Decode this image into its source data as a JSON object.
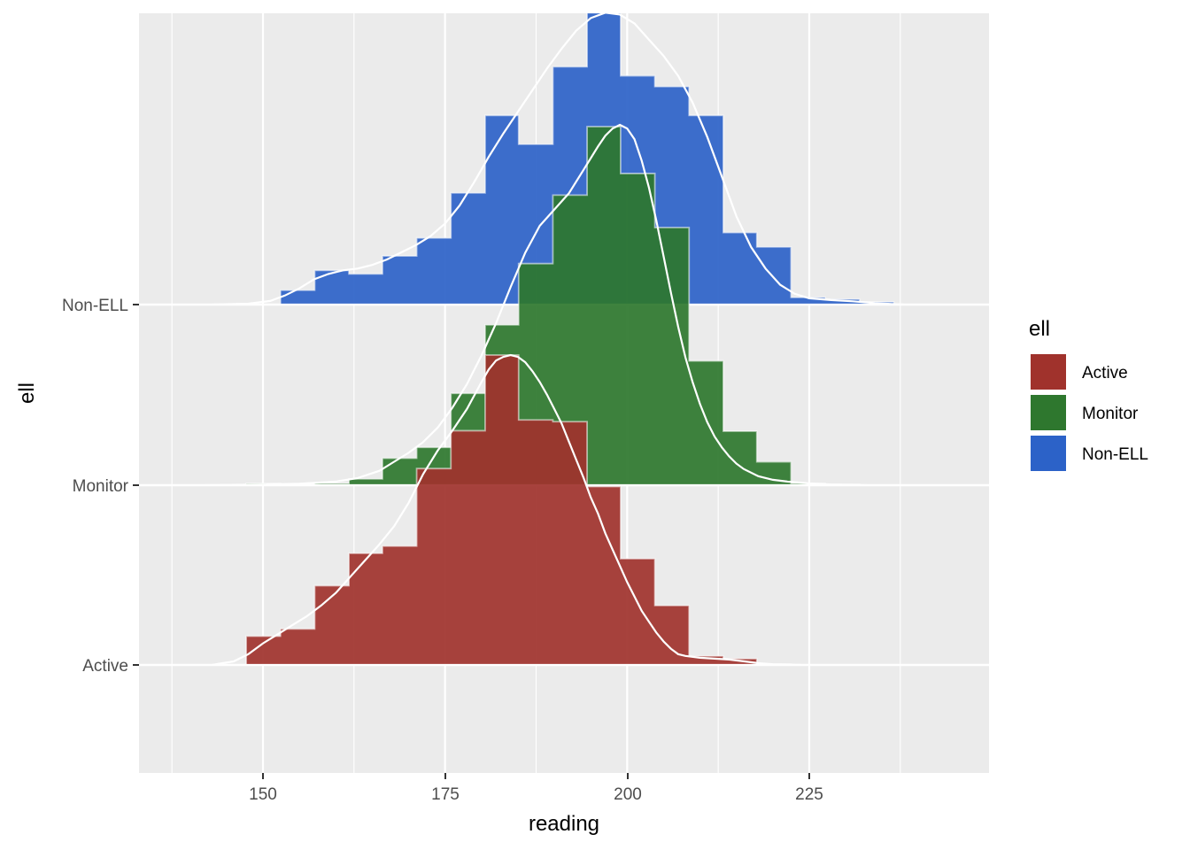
{
  "chart_data": {
    "type": "ridgeline-histogram-density",
    "title": "",
    "xlabel": "reading",
    "ylabel": "ell",
    "x_ticks": [
      150,
      175,
      200,
      225
    ],
    "x_minor_gridlines": [
      137.5,
      162.5,
      187.5,
      212.5,
      237.5
    ],
    "xlim": [
      132.8,
      249.5
    ],
    "y_categories": [
      "Active",
      "Monitor",
      "Non-ELL"
    ],
    "grid": true,
    "legend": {
      "title": "ell",
      "position": "right",
      "entries": [
        {
          "label": "Active",
          "color": "#A0322C"
        },
        {
          "label": "Monitor",
          "color": "#2E772E"
        },
        {
          "label": "Non-ELL",
          "color": "#2C62C8"
        }
      ]
    },
    "bin_width": 4.68,
    "series": [
      {
        "name": "Active",
        "color": "#A0322C",
        "baseline_index": 0,
        "bins": [
          {
            "x0": 147.7,
            "x1": 152.4,
            "h": 0.16
          },
          {
            "x0": 152.4,
            "x1": 157.1,
            "h": 0.2
          },
          {
            "x0": 157.1,
            "x1": 161.8,
            "h": 0.44
          },
          {
            "x0": 161.8,
            "x1": 166.4,
            "h": 0.62
          },
          {
            "x0": 166.4,
            "x1": 171.1,
            "h": 0.66
          },
          {
            "x0": 171.1,
            "x1": 175.8,
            "h": 1.09
          },
          {
            "x0": 175.8,
            "x1": 180.5,
            "h": 1.3
          },
          {
            "x0": 180.5,
            "x1": 185.1,
            "h": 1.72
          },
          {
            "x0": 185.1,
            "x1": 189.8,
            "h": 1.36
          },
          {
            "x0": 189.8,
            "x1": 194.5,
            "h": 1.35
          },
          {
            "x0": 194.5,
            "x1": 199.1,
            "h": 0.99
          },
          {
            "x0": 199.1,
            "x1": 203.8,
            "h": 0.59
          },
          {
            "x0": 203.8,
            "x1": 208.5,
            "h": 0.33
          },
          {
            "x0": 208.5,
            "x1": 213.2,
            "h": 0.05
          },
          {
            "x0": 213.2,
            "x1": 217.8,
            "h": 0.035
          },
          {
            "x0": 217.8,
            "x1": 222.5,
            "h": 0.005
          }
        ],
        "density": [
          [
            143.0,
            0.0
          ],
          [
            146.0,
            0.02
          ],
          [
            148.0,
            0.06
          ],
          [
            150.0,
            0.12
          ],
          [
            152.0,
            0.17
          ],
          [
            154.0,
            0.22
          ],
          [
            156.0,
            0.27
          ],
          [
            158.0,
            0.33
          ],
          [
            160.0,
            0.4
          ],
          [
            162.0,
            0.49
          ],
          [
            164.0,
            0.58
          ],
          [
            166.0,
            0.67
          ],
          [
            168.0,
            0.77
          ],
          [
            170.0,
            0.9
          ],
          [
            172.0,
            1.06
          ],
          [
            174.0,
            1.19
          ],
          [
            176.0,
            1.3
          ],
          [
            178.0,
            1.42
          ],
          [
            180.0,
            1.57
          ],
          [
            181.0,
            1.64
          ],
          [
            182.0,
            1.69
          ],
          [
            183.0,
            1.71
          ],
          [
            184.0,
            1.72
          ],
          [
            185.0,
            1.71
          ],
          [
            186.0,
            1.68
          ],
          [
            187.0,
            1.63
          ],
          [
            188.0,
            1.57
          ],
          [
            189.0,
            1.5
          ],
          [
            190.0,
            1.42
          ],
          [
            191.0,
            1.34
          ],
          [
            192.0,
            1.24
          ],
          [
            193.0,
            1.14
          ],
          [
            194.0,
            1.04
          ],
          [
            195.0,
            0.93
          ],
          [
            196.0,
            0.84
          ],
          [
            197.0,
            0.73
          ],
          [
            198.0,
            0.64
          ],
          [
            199.0,
            0.55
          ],
          [
            200.0,
            0.46
          ],
          [
            201.0,
            0.38
          ],
          [
            202.0,
            0.3
          ],
          [
            203.0,
            0.24
          ],
          [
            204.0,
            0.18
          ],
          [
            205.0,
            0.13
          ],
          [
            206.0,
            0.09
          ],
          [
            207.0,
            0.06
          ],
          [
            208.0,
            0.05
          ],
          [
            210.0,
            0.04
          ],
          [
            212.0,
            0.035
          ],
          [
            214.0,
            0.03
          ],
          [
            216.0,
            0.02
          ],
          [
            218.0,
            0.01
          ],
          [
            220.0,
            0.004
          ],
          [
            224.0,
            0.0
          ]
        ]
      },
      {
        "name": "Monitor",
        "color": "#2E772E",
        "baseline_index": 1,
        "bins": [
          {
            "x0": 147.7,
            "x1": 152.4,
            "h": 0.01
          },
          {
            "x0": 152.4,
            "x1": 157.1,
            "h": 0.005
          },
          {
            "x0": 157.1,
            "x1": 161.8,
            "h": 0.01
          },
          {
            "x0": 161.8,
            "x1": 166.4,
            "h": 0.035
          },
          {
            "x0": 166.4,
            "x1": 171.1,
            "h": 0.15
          },
          {
            "x0": 171.1,
            "x1": 175.8,
            "h": 0.21
          },
          {
            "x0": 175.8,
            "x1": 180.5,
            "h": 0.51
          },
          {
            "x0": 180.5,
            "x1": 185.1,
            "h": 0.89
          },
          {
            "x0": 185.1,
            "x1": 189.8,
            "h": 1.23
          },
          {
            "x0": 189.8,
            "x1": 194.5,
            "h": 1.61
          },
          {
            "x0": 194.5,
            "x1": 199.1,
            "h": 1.99
          },
          {
            "x0": 199.1,
            "x1": 203.8,
            "h": 1.73
          },
          {
            "x0": 203.8,
            "x1": 208.5,
            "h": 1.43
          },
          {
            "x0": 208.5,
            "x1": 213.2,
            "h": 0.69
          },
          {
            "x0": 213.2,
            "x1": 217.8,
            "h": 0.3
          },
          {
            "x0": 217.8,
            "x1": 222.5,
            "h": 0.13
          },
          {
            "x0": 222.5,
            "x1": 227.2,
            "h": 0.01
          },
          {
            "x0": 227.2,
            "x1": 231.9,
            "h": 0.005
          }
        ],
        "density": [
          [
            142.0,
            0.0
          ],
          [
            150.0,
            0.004
          ],
          [
            155.0,
            0.008
          ],
          [
            160.0,
            0.02
          ],
          [
            163.0,
            0.04
          ],
          [
            166.0,
            0.08
          ],
          [
            168.0,
            0.13
          ],
          [
            170.0,
            0.18
          ],
          [
            172.0,
            0.24
          ],
          [
            174.0,
            0.32
          ],
          [
            176.0,
            0.43
          ],
          [
            178.0,
            0.56
          ],
          [
            180.0,
            0.72
          ],
          [
            182.0,
            0.9
          ],
          [
            184.0,
            1.1
          ],
          [
            186.0,
            1.29
          ],
          [
            188.0,
            1.44
          ],
          [
            190.0,
            1.53
          ],
          [
            192.0,
            1.62
          ],
          [
            194.0,
            1.75
          ],
          [
            196.0,
            1.88
          ],
          [
            197.0,
            1.94
          ],
          [
            198.0,
            1.98
          ],
          [
            199.0,
            2.0
          ],
          [
            200.0,
            1.98
          ],
          [
            201.0,
            1.92
          ],
          [
            202.0,
            1.8
          ],
          [
            203.0,
            1.65
          ],
          [
            204.0,
            1.47
          ],
          [
            205.0,
            1.27
          ],
          [
            206.0,
            1.07
          ],
          [
            207.0,
            0.88
          ],
          [
            208.0,
            0.71
          ],
          [
            209.0,
            0.57
          ],
          [
            210.0,
            0.45
          ],
          [
            211.0,
            0.35
          ],
          [
            212.0,
            0.27
          ],
          [
            213.0,
            0.21
          ],
          [
            214.0,
            0.16
          ],
          [
            215.0,
            0.12
          ],
          [
            216.0,
            0.09
          ],
          [
            218.0,
            0.05
          ],
          [
            220.0,
            0.03
          ],
          [
            222.0,
            0.02
          ],
          [
            225.0,
            0.01
          ],
          [
            228.0,
            0.004
          ],
          [
            233.0,
            0.0
          ]
        ]
      },
      {
        "name": "Non-ELL",
        "color": "#2C62C8",
        "baseline_index": 2,
        "bins": [
          {
            "x0": 152.4,
            "x1": 157.1,
            "h": 0.08
          },
          {
            "x0": 157.1,
            "x1": 161.8,
            "h": 0.19
          },
          {
            "x0": 161.8,
            "x1": 166.4,
            "h": 0.17
          },
          {
            "x0": 166.4,
            "x1": 171.1,
            "h": 0.27
          },
          {
            "x0": 171.1,
            "x1": 175.8,
            "h": 0.37
          },
          {
            "x0": 175.8,
            "x1": 180.5,
            "h": 0.62
          },
          {
            "x0": 180.5,
            "x1": 185.1,
            "h": 1.05
          },
          {
            "x0": 185.1,
            "x1": 189.8,
            "h": 0.89
          },
          {
            "x0": 189.8,
            "x1": 194.5,
            "h": 1.32
          },
          {
            "x0": 194.5,
            "x1": 199.1,
            "h": 1.62
          },
          {
            "x0": 199.1,
            "x1": 203.8,
            "h": 1.27
          },
          {
            "x0": 203.8,
            "x1": 208.5,
            "h": 1.21
          },
          {
            "x0": 208.5,
            "x1": 213.2,
            "h": 1.05
          },
          {
            "x0": 213.2,
            "x1": 217.8,
            "h": 0.4
          },
          {
            "x0": 217.8,
            "x1": 222.5,
            "h": 0.32
          },
          {
            "x0": 222.5,
            "x1": 227.2,
            "h": 0.04
          },
          {
            "x0": 227.2,
            "x1": 231.9,
            "h": 0.03
          },
          {
            "x0": 231.9,
            "x1": 236.6,
            "h": 0.015
          }
        ],
        "density": [
          [
            143.0,
            0.0
          ],
          [
            148.0,
            0.005
          ],
          [
            151.0,
            0.02
          ],
          [
            153.0,
            0.05
          ],
          [
            155.0,
            0.09
          ],
          [
            157.0,
            0.14
          ],
          [
            159.0,
            0.17
          ],
          [
            161.0,
            0.19
          ],
          [
            163.0,
            0.2
          ],
          [
            165.0,
            0.22
          ],
          [
            167.0,
            0.25
          ],
          [
            169.0,
            0.29
          ],
          [
            171.0,
            0.33
          ],
          [
            173.0,
            0.38
          ],
          [
            175.0,
            0.45
          ],
          [
            177.0,
            0.55
          ],
          [
            179.0,
            0.68
          ],
          [
            181.0,
            0.82
          ],
          [
            183.0,
            0.95
          ],
          [
            185.0,
            1.07
          ],
          [
            187.0,
            1.19
          ],
          [
            189.0,
            1.31
          ],
          [
            191.0,
            1.42
          ],
          [
            193.0,
            1.52
          ],
          [
            195.0,
            1.59
          ],
          [
            197.0,
            1.62
          ],
          [
            199.0,
            1.61
          ],
          [
            201.0,
            1.56
          ],
          [
            203.0,
            1.47
          ],
          [
            205.0,
            1.38
          ],
          [
            207.0,
            1.27
          ],
          [
            209.0,
            1.12
          ],
          [
            211.0,
            0.93
          ],
          [
            213.0,
            0.71
          ],
          [
            215.0,
            0.49
          ],
          [
            217.0,
            0.32
          ],
          [
            219.0,
            0.2
          ],
          [
            221.0,
            0.11
          ],
          [
            223.0,
            0.06
          ],
          [
            225.0,
            0.035
          ],
          [
            228.0,
            0.025
          ],
          [
            231.0,
            0.018
          ],
          [
            234.0,
            0.008
          ],
          [
            238.0,
            0.0
          ]
        ]
      }
    ]
  },
  "axes": {
    "x_title": "reading",
    "y_title": "ell",
    "x_tick_labels": [
      "150",
      "175",
      "200",
      "225"
    ],
    "y_tick_labels": [
      "Active",
      "Monitor",
      "Non-ELL"
    ]
  },
  "legend": {
    "title": "ell",
    "items": [
      {
        "label": "Active",
        "color": "#A0322C"
      },
      {
        "label": "Monitor",
        "color": "#2E772E"
      },
      {
        "label": "Non-ELL",
        "color": "#2C62C8"
      }
    ]
  },
  "colors": {
    "panel_bg": "#EBEBEB",
    "grid": "#FFFFFF",
    "tick_text": "#4D4D4D",
    "tick_mark": "#333333"
  }
}
